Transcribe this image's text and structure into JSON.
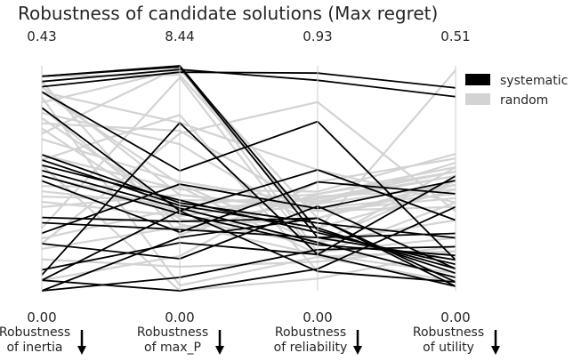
{
  "chart_data": {
    "type": "parallel_coordinates",
    "title": "Robustness of candidate solutions (Max regret)",
    "axes": [
      {
        "label_line1": "Robustness",
        "label_line2": "of inertia",
        "max": 0.43,
        "max_label": "0.43",
        "min_label": "0.00",
        "direction": "down"
      },
      {
        "label_line1": "Robustness",
        "label_line2": "of max_P",
        "max": 8.44,
        "max_label": "8.44",
        "min_label": "0.00",
        "direction": "down"
      },
      {
        "label_line1": "Robustness",
        "label_line2": "of reliability",
        "max": 0.93,
        "max_label": "0.93",
        "min_label": "0.00",
        "direction": "down"
      },
      {
        "label_line1": "Robustness",
        "label_line2": "of utility",
        "max": 0.51,
        "max_label": "0.51",
        "min_label": "0.00",
        "direction": "down"
      }
    ],
    "legend": {
      "placement": "top-right",
      "entries": [
        {
          "name": "systematic",
          "color": "#000000"
        },
        {
          "name": "random",
          "color": "#d3d3d3"
        }
      ]
    },
    "grid": false,
    "series": [
      {
        "name": "random",
        "color": "#d3d3d3",
        "lines": [
          [
            0.41,
            8.1,
            0.25,
            0.5
          ],
          [
            0.4,
            2.1,
            0.4,
            0.27
          ],
          [
            0.39,
            3.6,
            0.34,
            0.22
          ],
          [
            0.38,
            4.0,
            0.2,
            0.16
          ],
          [
            0.37,
            0.2,
            0.14,
            0.09
          ],
          [
            0.36,
            8.3,
            0.3,
            0.25
          ],
          [
            0.35,
            2.5,
            0.15,
            0.2
          ],
          [
            0.34,
            5.5,
            0.26,
            0.23
          ],
          [
            0.33,
            3.0,
            0.38,
            0.26
          ],
          [
            0.32,
            6.0,
            0.33,
            0.19
          ],
          [
            0.31,
            2.7,
            0.19,
            0.28
          ],
          [
            0.3,
            8.4,
            0.16,
            0.12
          ],
          [
            0.29,
            4.1,
            0.36,
            0.24
          ],
          [
            0.22,
            3.0,
            0.38,
            0.27
          ],
          [
            0.19,
            3.2,
            0.4,
            0.28
          ],
          [
            0.18,
            3.4,
            0.37,
            0.26
          ],
          [
            0.17,
            2.8,
            0.39,
            0.23
          ],
          [
            0.16,
            3.6,
            0.33,
            0.21
          ],
          [
            0.2,
            3.9,
            0.15,
            0.04
          ],
          [
            0.14,
            2.6,
            0.36,
            0.29
          ],
          [
            0.12,
            8.0,
            0.14,
            0.02
          ],
          [
            0.1,
            3.1,
            0.2,
            0.25
          ],
          [
            0.08,
            2.4,
            0.3,
            0.24
          ],
          [
            0.06,
            0.9,
            0.12,
            0.1
          ],
          [
            0.02,
            1.3,
            0.45,
            0.3
          ],
          [
            0.09,
            5.9,
            0.78,
            0.18
          ],
          [
            0.26,
            3.8,
            0.41,
            0.31
          ],
          [
            0.25,
            6.6,
            0.08,
            0.02
          ],
          [
            0.24,
            0.0,
            0.05,
            0.09
          ],
          [
            0.38,
            6.3,
            0.5,
            0.2
          ]
        ]
      },
      {
        "name": "systematic",
        "color": "#000000",
        "lines": [
          [
            0.41,
            8.44,
            0.25,
            0.05
          ],
          [
            0.41,
            8.4,
            0.22,
            0.07
          ],
          [
            0.4,
            8.3,
            0.87,
            0.44
          ],
          [
            0.39,
            8.2,
            0.9,
            0.46
          ],
          [
            0.38,
            4.5,
            0.7,
            0.07
          ],
          [
            0.35,
            3.0,
            0.08,
            0.02
          ],
          [
            0.26,
            3.3,
            0.28,
            0.12
          ],
          [
            0.25,
            3.2,
            0.26,
            0.04
          ],
          [
            0.24,
            3.4,
            0.24,
            0.06
          ],
          [
            0.23,
            3.1,
            0.2,
            0.03
          ],
          [
            0.22,
            2.9,
            0.19,
            0.08
          ],
          [
            0.21,
            2.2,
            0.45,
            0.22
          ],
          [
            0.14,
            2.6,
            0.3,
            0.02
          ],
          [
            0.13,
            2.3,
            0.22,
            0.13
          ],
          [
            0.11,
            4.0,
            0.34,
            0.25
          ],
          [
            0.09,
            1.2,
            0.35,
            0.05
          ],
          [
            0.02,
            0.0,
            0.09,
            0.19
          ],
          [
            0.0,
            0.5,
            0.17,
            0.1
          ],
          [
            0.04,
            1.8,
            0.15,
            0.01
          ],
          [
            0.02,
            3.0,
            0.5,
            0.16
          ],
          [
            0.03,
            6.3,
            0.15,
            0.26
          ],
          [
            0.0,
            2.0,
            0.3,
            0.01
          ]
        ]
      }
    ]
  }
}
